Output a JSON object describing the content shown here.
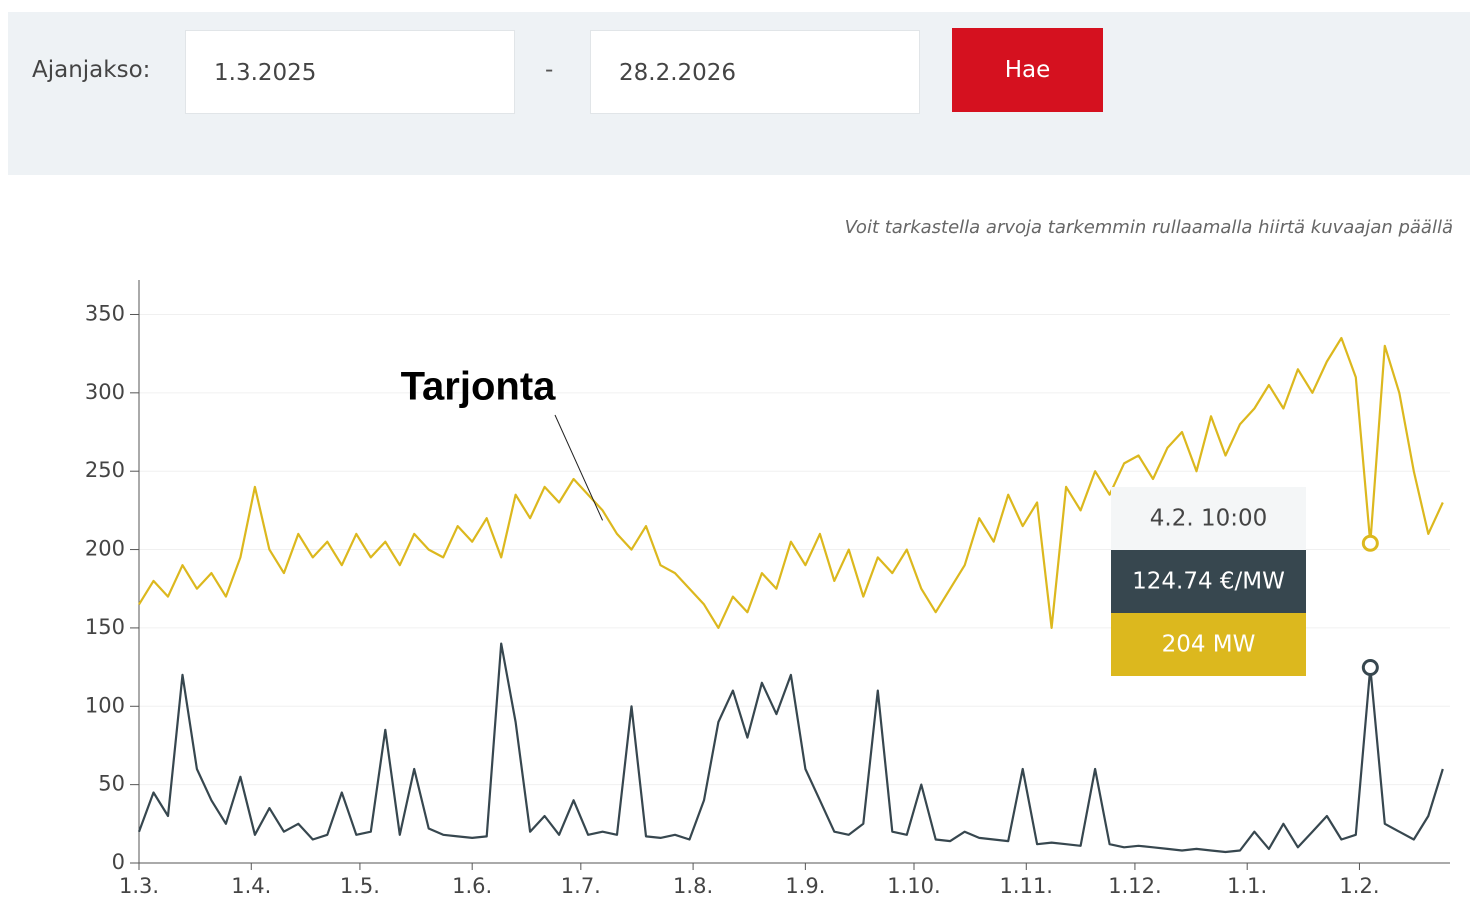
{
  "filter": {
    "label": "Ajanjakso:",
    "start": "1.3.2025",
    "separator": "-",
    "end": "28.2.2026",
    "button": "Hae"
  },
  "hint": "Voit tarkastella arvoja tarkemmin rullaamalla hiirtä kuvaajan päällä",
  "chart_data": {
    "type": "line",
    "annotation": "Tarjonta",
    "x": [
      "1.3.",
      "5.3.",
      "9.3.",
      "13.3.",
      "17.3.",
      "21.3.",
      "25.3.",
      "29.3.",
      "2.4.",
      "6.4.",
      "10.4.",
      "14.4.",
      "18.4.",
      "22.4.",
      "26.4.",
      "30.4.",
      "4.5.",
      "8.5.",
      "12.5.",
      "16.5.",
      "20.5.",
      "24.5.",
      "28.5.",
      "1.6.",
      "5.6.",
      "9.6.",
      "13.6.",
      "17.6.",
      "21.6.",
      "25.6.",
      "29.6.",
      "3.7.",
      "7.7.",
      "11.7.",
      "15.7.",
      "19.7.",
      "23.7.",
      "27.7.",
      "31.7.",
      "4.8.",
      "8.8.",
      "12.8.",
      "16.8.",
      "20.8.",
      "24.8.",
      "28.8.",
      "1.9.",
      "5.9.",
      "9.9.",
      "13.9.",
      "17.9.",
      "21.9.",
      "25.9.",
      "29.9.",
      "3.10.",
      "7.10.",
      "11.10.",
      "15.10.",
      "19.10.",
      "23.10.",
      "27.10.",
      "31.10.",
      "4.11.",
      "8.11.",
      "12.11.",
      "16.11.",
      "20.11.",
      "24.11.",
      "28.11.",
      "2.12.",
      "6.12.",
      "10.12.",
      "14.12.",
      "18.12.",
      "22.12.",
      "26.12.",
      "30.12.",
      "3.1.",
      "7.1.",
      "11.1.",
      "15.1.",
      "19.1.",
      "23.1.",
      "27.1.",
      "31.1.",
      "4.2.",
      "8.2.",
      "12.2.",
      "16.2.",
      "20.2.",
      "24.2."
    ],
    "series": [
      {
        "name": "Tarjonta",
        "color": "#dcb81e",
        "values": [
          165,
          180,
          170,
          190,
          175,
          185,
          170,
          195,
          240,
          200,
          185,
          210,
          195,
          205,
          190,
          210,
          195,
          205,
          190,
          210,
          200,
          195,
          215,
          205,
          220,
          195,
          235,
          220,
          240,
          230,
          245,
          235,
          225,
          210,
          200,
          215,
          190,
          185,
          175,
          165,
          150,
          170,
          160,
          185,
          175,
          205,
          190,
          210,
          180,
          200,
          170,
          195,
          185,
          200,
          175,
          160,
          175,
          190,
          220,
          205,
          235,
          215,
          230,
          150,
          240,
          225,
          250,
          235,
          255,
          260,
          245,
          265,
          275,
          250,
          285,
          260,
          280,
          290,
          305,
          290,
          315,
          300,
          320,
          335,
          310,
          204,
          330,
          300,
          250,
          210,
          230
        ]
      },
      {
        "color": "#37474f",
        "values": [
          20,
          45,
          30,
          120,
          60,
          40,
          25,
          55,
          18,
          35,
          20,
          25,
          15,
          18,
          45,
          18,
          20,
          85,
          18,
          60,
          22,
          18,
          17,
          16,
          17,
          140,
          90,
          20,
          30,
          18,
          40,
          18,
          20,
          18,
          100,
          17,
          16,
          18,
          15,
          40,
          90,
          110,
          80,
          115,
          95,
          120,
          60,
          40,
          20,
          18,
          25,
          110,
          20,
          18,
          50,
          15,
          14,
          20,
          16,
          15,
          14,
          60,
          12,
          13,
          12,
          11,
          60,
          12,
          10,
          11,
          10,
          9,
          8,
          9,
          8,
          7,
          8,
          20,
          9,
          25,
          10,
          20,
          30,
          15,
          18,
          124.74,
          25,
          20,
          15,
          30,
          60
        ]
      }
    ],
    "tooltip": {
      "time": "4.2. 10:00",
      "price_label": "124.74 €/MW",
      "volume_label": "204 MW"
    },
    "xlim": [
      "1.3.",
      "26.2."
    ],
    "xticks": [
      "1.3.",
      "1.4.",
      "1.5.",
      "1.6.",
      "1.7.",
      "1.8.",
      "1.9.",
      "1.10.",
      "1.11.",
      "1.12.",
      "1.1.",
      "1.2."
    ],
    "ylim": [
      0,
      372
    ],
    "yticks": [
      0,
      50,
      100,
      150,
      200,
      250,
      300,
      350
    ],
    "grid": true
  }
}
